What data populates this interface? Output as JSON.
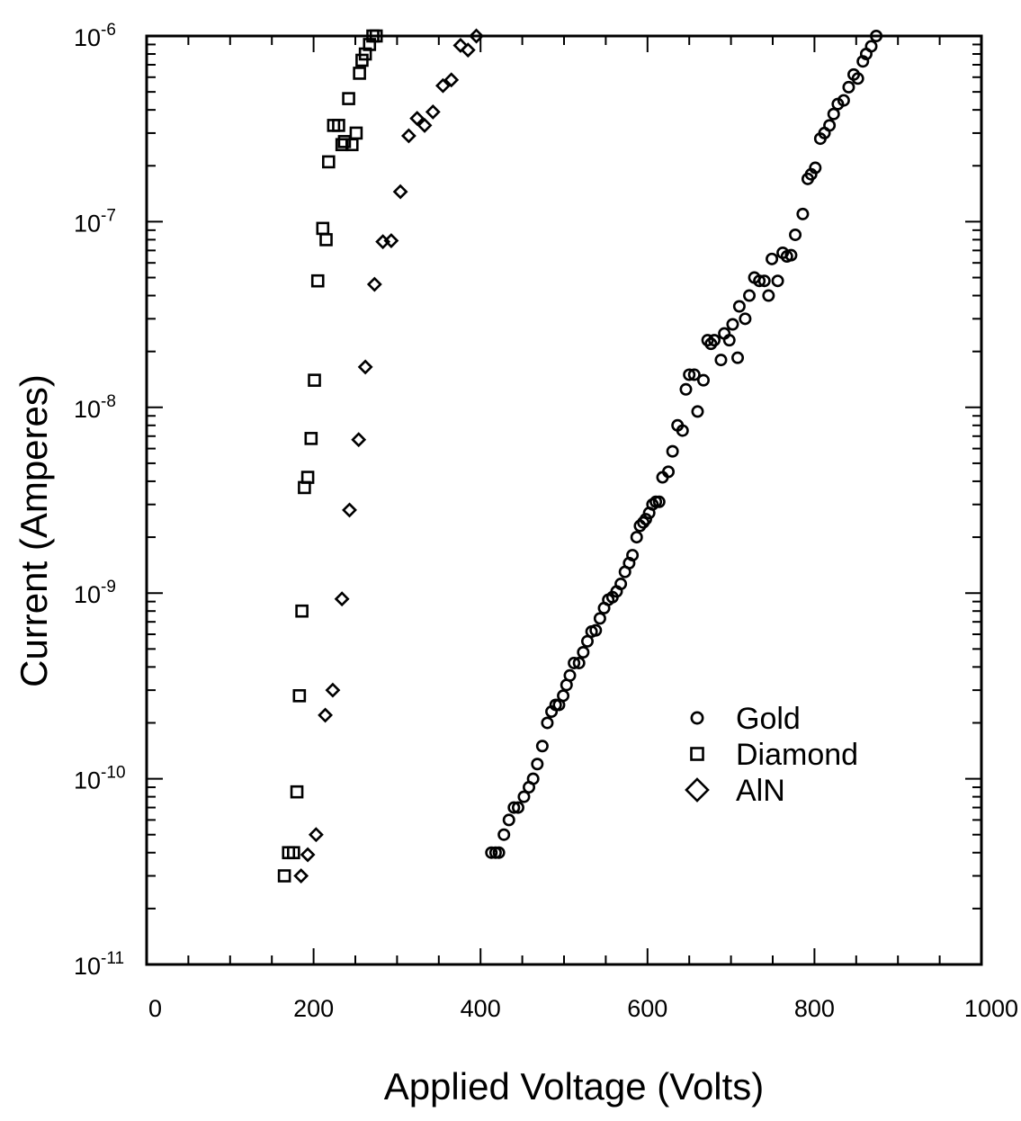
{
  "chart_data": {
    "type": "scatter",
    "title": "",
    "xlabel": "Applied Voltage (Volts)",
    "ylabel": "Current (Amperes)",
    "xlim": [
      0,
      1000
    ],
    "ylim": [
      1e-11,
      1e-06
    ],
    "yscale": "log",
    "grid": false,
    "legend_position": "lower-right",
    "x_ticks": [
      "0",
      "200",
      "400",
      "600",
      "800",
      "1000"
    ],
    "x_tick_values": [
      0,
      200,
      400,
      600,
      800,
      1000
    ],
    "y_ticks": [
      {
        "base": "10",
        "exp": "-11",
        "value": 1e-11
      },
      {
        "base": "10",
        "exp": "-10",
        "value": 1e-10
      },
      {
        "base": "10",
        "exp": "-9",
        "value": 1e-09
      },
      {
        "base": "10",
        "exp": "-8",
        "value": 1e-08
      },
      {
        "base": "10",
        "exp": "-7",
        "value": 1e-07
      },
      {
        "base": "10",
        "exp": "-6",
        "value": 1e-06
      }
    ],
    "series": [
      {
        "name": "Gold",
        "marker": "circle",
        "x": [
          413,
          418,
          422,
          428,
          434,
          440,
          445,
          452,
          458,
          463,
          468,
          474,
          480,
          485,
          490,
          494,
          499,
          503,
          507,
          512,
          518,
          523,
          528,
          533,
          538,
          543,
          548,
          553,
          558,
          563,
          568,
          573,
          578,
          582,
          587,
          591,
          595,
          598,
          602,
          606,
          610,
          614,
          618,
          625,
          630,
          636,
          642,
          646,
          650,
          656,
          660,
          667,
          672,
          676,
          680,
          688,
          692,
          698,
          702,
          708,
          710,
          717,
          722,
          728,
          734,
          740,
          745,
          749,
          756,
          762,
          767,
          772,
          777,
          786,
          792,
          796,
          801,
          807,
          812,
          818,
          823,
          828,
          835,
          841,
          847,
          852,
          858,
          862,
          868,
          874
        ],
        "y": [
          4e-11,
          4e-11,
          4e-11,
          5e-11,
          6e-11,
          7e-11,
          7e-11,
          8e-11,
          9e-11,
          1e-10,
          1.2e-10,
          1.5e-10,
          2e-10,
          2.3e-10,
          2.5e-10,
          2.5e-10,
          2.8e-10,
          3.2e-10,
          3.6e-10,
          4.2e-10,
          4.2e-10,
          4.8e-10,
          5.5e-10,
          6.2e-10,
          6.3e-10,
          7.3e-10,
          8.3e-10,
          9.2e-10,
          9.5e-10,
          1.02e-09,
          1.12e-09,
          1.3e-09,
          1.45e-09,
          1.6e-09,
          2e-09,
          2.3e-09,
          2.4e-09,
          2.5e-09,
          2.7e-09,
          3e-09,
          3.1e-09,
          3.1e-09,
          4.2e-09,
          4.5e-09,
          5.8e-09,
          8e-09,
          7.5e-09,
          1.25e-08,
          1.5e-08,
          1.5e-08,
          9.5e-09,
          1.4e-08,
          2.3e-08,
          2.2e-08,
          2.3e-08,
          1.8e-08,
          2.5e-08,
          2.3e-08,
          2.8e-08,
          1.85e-08,
          3.5e-08,
          3e-08,
          4e-08,
          5e-08,
          4.8e-08,
          4.8e-08,
          4e-08,
          6.3e-08,
          4.8e-08,
          6.8e-08,
          6.5e-08,
          6.6e-08,
          8.5e-08,
          1.1e-07,
          1.7e-07,
          1.8e-07,
          1.95e-07,
          2.8e-07,
          3e-07,
          3.3e-07,
          3.8e-07,
          4.3e-07,
          4.5e-07,
          5.3e-07,
          6.2e-07,
          5.9e-07,
          7.3e-07,
          8e-07,
          8.8e-07,
          1e-06
        ]
      },
      {
        "name": "Diamond",
        "marker": "square",
        "x": [
          165,
          170,
          176,
          180,
          183,
          186,
          189,
          193,
          197,
          201,
          205,
          211,
          215,
          218,
          224,
          230,
          234,
          237,
          242,
          246,
          251,
          255,
          258,
          262,
          267,
          271,
          275
        ],
        "y": [
          3e-11,
          4e-11,
          4e-11,
          8.5e-11,
          2.8e-10,
          8e-10,
          3.7e-09,
          4.2e-09,
          6.8e-09,
          1.4e-08,
          4.8e-08,
          9.2e-08,
          8e-08,
          2.1e-07,
          3.3e-07,
          3.3e-07,
          2.6e-07,
          2.7e-07,
          4.6e-07,
          2.6e-07,
          3e-07,
          6.3e-07,
          7.4e-07,
          8e-07,
          9e-07,
          1e-06,
          1e-06
        ]
      },
      {
        "name": "AlN",
        "marker": "diamond",
        "x": [
          185,
          193,
          203,
          214,
          223,
          234,
          243,
          254,
          262,
          273,
          283,
          293,
          304,
          314,
          324,
          333,
          343,
          355,
          365,
          376,
          385,
          395
        ],
        "y": [
          3e-11,
          3.9e-11,
          5e-11,
          2.2e-10,
          3e-10,
          9.3e-10,
          2.8e-09,
          6.7e-09,
          1.65e-08,
          4.6e-08,
          7.8e-08,
          7.9e-08,
          1.45e-07,
          2.9e-07,
          3.6e-07,
          3.3e-07,
          3.9e-07,
          5.4e-07,
          5.8e-07,
          8.9e-07,
          8.4e-07,
          1e-06
        ]
      }
    ]
  }
}
